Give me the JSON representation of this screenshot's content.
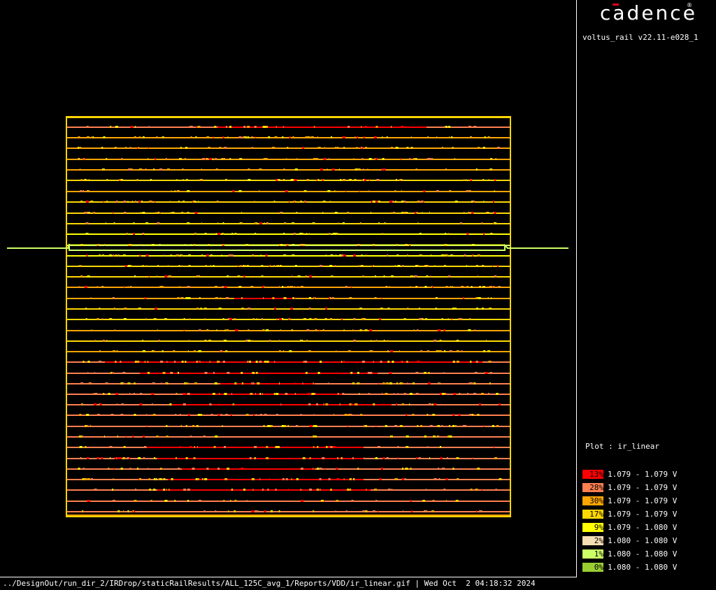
{
  "app": {
    "logo_text": "cadence",
    "version": "voltus_rail v22.11-e028_1"
  },
  "legend": {
    "plot_label": "Plot : ir_linear",
    "items": [
      {
        "pct": "13%",
        "range": "1.079 - 1.079 V",
        "color": "#ff0000"
      },
      {
        "pct": "28%",
        "range": "1.079 - 1.079 V",
        "color": "#ff7f50"
      },
      {
        "pct": "30%",
        "range": "1.079 - 1.079 V",
        "color": "#ffa500"
      },
      {
        "pct": "17%",
        "range": "1.079 - 1.079 V",
        "color": "#ffd700"
      },
      {
        "pct": "9%",
        "range": "1.079 - 1.080 V",
        "color": "#ffff00"
      },
      {
        "pct": "2%",
        "range": "1.080 - 1.080 V",
        "color": "#f5deb3"
      },
      {
        "pct": "1%",
        "range": "1.080 - 1.080 V",
        "color": "#ccff66"
      },
      {
        "pct": "0%",
        "range": "1.080 - 1.080 V",
        "color": "#9acd32"
      }
    ]
  },
  "status_bar": {
    "path": "../DesignOut/run_dir_2/IRDrop/staticRailResults/ALL_125C_avg_1/Reports/VDD/ir_linear.gif | Wed Oct  2 04:18:32 2024"
  }
}
